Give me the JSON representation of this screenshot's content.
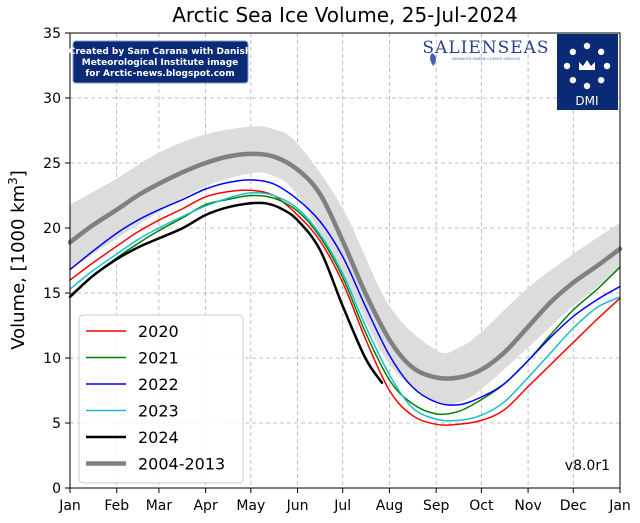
{
  "chart_data": {
    "type": "line",
    "title": "Arctic Sea Ice Volume, 25-Jul-2024",
    "ylabel": "Volume, [1000 km",
    "ylabel_sup": "3",
    "ylabel_close": "]",
    "xlabel": "",
    "xlim": [
      0,
      365
    ],
    "ylim": [
      0,
      35
    ],
    "yticks": [
      0,
      5,
      10,
      15,
      20,
      25,
      30,
      35
    ],
    "x_ticks": [
      {
        "label": "Jan",
        "day": 0
      },
      {
        "label": "Feb",
        "day": 31
      },
      {
        "label": "Mar",
        "day": 59
      },
      {
        "label": "Apr",
        "day": 90
      },
      {
        "label": "May",
        "day": 120
      },
      {
        "label": "Jun",
        "day": 151
      },
      {
        "label": "Jul",
        "day": 181
      },
      {
        "label": "Aug",
        "day": 212
      },
      {
        "label": "Sep",
        "day": 243
      },
      {
        "label": "Oct",
        "day": 273
      },
      {
        "label": "Nov",
        "day": 304
      },
      {
        "label": "Dec",
        "day": 334
      },
      {
        "label": "Jan",
        "day": 365
      }
    ],
    "grid": true,
    "legend_position": "bottom-left",
    "band": {
      "x": [
        0,
        31,
        59,
        90,
        120,
        135,
        151,
        181,
        212,
        243,
        258,
        273,
        304,
        334,
        365
      ],
      "low": [
        16.8,
        19.2,
        21.2,
        23.2,
        24.2,
        24.0,
        22.5,
        16.5,
        9.5,
        6.6,
        6.6,
        7.6,
        10.8,
        14.0,
        16.8
      ],
      "high": [
        21.8,
        23.8,
        25.8,
        27.2,
        27.8,
        27.6,
        26.5,
        21.5,
        14.0,
        10.6,
        10.8,
        12.0,
        15.4,
        18.0,
        20.4
      ]
    },
    "series": [
      {
        "name": "2020",
        "color": "#ff0000",
        "width": 1.5,
        "x": [
          0,
          15,
          31,
          45,
          59,
          75,
          90,
          105,
          120,
          135,
          151,
          166,
          181,
          196,
          212,
          227,
          243,
          258,
          273,
          288,
          304,
          319,
          334,
          350,
          365
        ],
        "y": [
          16.0,
          17.3,
          18.6,
          19.7,
          20.6,
          21.5,
          22.4,
          22.8,
          22.9,
          22.5,
          21.0,
          19.0,
          15.8,
          11.5,
          7.5,
          5.6,
          4.9,
          4.9,
          5.2,
          6.0,
          7.8,
          9.5,
          11.2,
          13.0,
          14.6
        ]
      },
      {
        "name": "2021",
        "color": "#008000",
        "width": 1.5,
        "x": [
          0,
          15,
          31,
          45,
          59,
          75,
          90,
          105,
          120,
          135,
          151,
          166,
          181,
          196,
          212,
          227,
          243,
          258,
          273,
          288,
          304,
          319,
          334,
          350,
          365
        ],
        "y": [
          14.8,
          16.3,
          17.7,
          18.8,
          19.8,
          20.8,
          21.8,
          22.2,
          22.5,
          22.3,
          21.3,
          19.3,
          16.2,
          12.0,
          8.3,
          6.5,
          5.7,
          5.9,
          6.8,
          8.0,
          9.8,
          11.8,
          13.7,
          15.3,
          17.0
        ]
      },
      {
        "name": "2022",
        "color": "#0000ff",
        "width": 1.5,
        "x": [
          0,
          15,
          31,
          45,
          59,
          75,
          90,
          105,
          120,
          135,
          151,
          166,
          181,
          196,
          212,
          227,
          243,
          258,
          273,
          288,
          304,
          319,
          334,
          350,
          365
        ],
        "y": [
          16.8,
          18.2,
          19.6,
          20.6,
          21.4,
          22.2,
          23.0,
          23.5,
          23.7,
          23.4,
          22.2,
          20.5,
          17.8,
          14.0,
          10.2,
          7.8,
          6.6,
          6.4,
          7.0,
          8.0,
          9.8,
          11.6,
          13.2,
          14.5,
          15.5
        ]
      },
      {
        "name": "2023",
        "color": "#17becf",
        "width": 1.5,
        "x": [
          0,
          15,
          31,
          45,
          59,
          75,
          90,
          105,
          120,
          135,
          151,
          166,
          181,
          196,
          212,
          227,
          243,
          258,
          273,
          288,
          304,
          319,
          334,
          350,
          365
        ],
        "y": [
          15.3,
          16.7,
          18.0,
          19.1,
          20.0,
          20.9,
          21.7,
          22.3,
          22.7,
          22.5,
          21.5,
          19.5,
          16.5,
          12.5,
          8.7,
          6.2,
          5.3,
          5.2,
          5.6,
          6.6,
          8.5,
          10.4,
          12.3,
          13.9,
          14.7
        ]
      },
      {
        "name": "2024",
        "color": "#000000",
        "width": 2.5,
        "x": [
          0,
          15,
          31,
          45,
          59,
          75,
          90,
          105,
          120,
          130,
          140,
          151,
          166,
          181,
          196,
          207
        ],
        "y": [
          14.7,
          16.3,
          17.6,
          18.5,
          19.2,
          20.0,
          21.0,
          21.6,
          21.9,
          21.9,
          21.5,
          20.6,
          18.3,
          14.0,
          10.0,
          8.1
        ]
      },
      {
        "name": "2004-2013",
        "color": "#808080",
        "width": 4.5,
        "x": [
          0,
          15,
          31,
          45,
          59,
          75,
          90,
          105,
          120,
          135,
          151,
          166,
          181,
          196,
          212,
          227,
          243,
          258,
          273,
          288,
          304,
          319,
          334,
          350,
          365
        ],
        "y": [
          18.9,
          20.2,
          21.4,
          22.5,
          23.4,
          24.3,
          25.0,
          25.5,
          25.7,
          25.5,
          24.5,
          22.6,
          19.0,
          15.0,
          11.4,
          9.3,
          8.5,
          8.5,
          9.1,
          10.4,
          12.4,
          14.3,
          15.8,
          17.1,
          18.4
        ]
      }
    ]
  },
  "credit": {
    "line1": "Created by Sam Carana with Danish",
    "line2": "Meteorological Institute image",
    "line3": "for Arctic-news.blogspot.com"
  },
  "logos": {
    "salienseas": "SALIENSEAS",
    "salienseas_sub": "ENHANCED MARINE CLIMATE SERVICES",
    "dmi": "DMI"
  },
  "version": "v8.0r1",
  "colors": {
    "band": "#dcdcdc",
    "credit_bg": "#0b2a75",
    "dmi_bg": "#0b2a75"
  }
}
